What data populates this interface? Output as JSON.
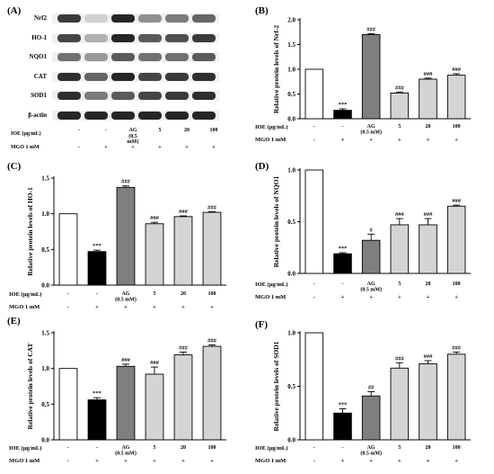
{
  "blot": {
    "panel_label": "(A)",
    "proteins": [
      "Nrf2",
      "HO-1",
      "NQO1",
      "CAT",
      "SOD1",
      "β-actin"
    ],
    "intensity": [
      [
        0.85,
        0.15,
        0.95,
        0.45,
        0.55,
        0.65
      ],
      [
        0.8,
        0.3,
        0.95,
        0.7,
        0.75,
        0.85
      ],
      [
        0.6,
        0.4,
        0.7,
        0.6,
        0.6,
        0.7
      ],
      [
        0.9,
        0.65,
        0.95,
        0.8,
        0.85,
        0.9
      ],
      [
        0.9,
        0.55,
        0.7,
        0.8,
        0.85,
        0.9
      ],
      [
        0.95,
        0.95,
        0.95,
        0.95,
        0.95,
        0.95
      ]
    ],
    "ioe_label": "IOE (μg/mL)",
    "mgo_label": "MGO 1 mM",
    "ioe_values": [
      "-",
      "-",
      "AG\n(0.5 mM)",
      "5",
      "20",
      "100"
    ],
    "mgo_values": [
      "-",
      "+",
      "+",
      "+",
      "+",
      "+"
    ]
  },
  "chart_data": [
    {
      "type": "bar",
      "panel_label": "(B)",
      "ylabel": "Relative protein levels of Nrf-2",
      "ylim": [
        0,
        2.0
      ],
      "yticks": [
        "0.0",
        "0.5",
        "1.0",
        "1.5",
        "2.0"
      ],
      "values": [
        1.0,
        0.17,
        1.7,
        0.52,
        0.8,
        0.88
      ],
      "errors": [
        0,
        0.03,
        0.02,
        0.02,
        0.02,
        0.03
      ],
      "annotations": [
        "",
        "***",
        "###",
        "###",
        "###",
        "###"
      ],
      "ioe_label": "IOE (μg/mL)",
      "mgo_label": "MGO 1 mM",
      "ioe_values": [
        "-",
        "-",
        "AG\n(0.5 mM)",
        "5",
        "20",
        "100"
      ],
      "mgo_values": [
        "-",
        "+",
        "+",
        "+",
        "+",
        "+"
      ]
    },
    {
      "type": "bar",
      "panel_label": "(C)",
      "ylabel": "Relative protein levels of HO-1",
      "ylim": [
        0,
        1.5
      ],
      "yticks": [
        "0.0",
        "0.5",
        "1.0",
        "1.5"
      ],
      "values": [
        1.0,
        0.47,
        1.37,
        0.86,
        0.96,
        1.02
      ],
      "errors": [
        0,
        0.02,
        0.02,
        0.02,
        0.01,
        0.01
      ],
      "annotations": [
        "",
        "***",
        "###",
        "###",
        "###",
        "###"
      ],
      "ioe_label": "IOE (μg/mL)",
      "mgo_label": "MGO 1 mM",
      "ioe_values": [
        "-",
        "-",
        "AG\n(0.5 mM)",
        "5",
        "20",
        "100"
      ],
      "mgo_values": [
        "-",
        "+",
        "+",
        "+",
        "+",
        "+"
      ]
    },
    {
      "type": "bar",
      "panel_label": "(D)",
      "ylabel": "Relative protein levels of NQO1",
      "ylim": [
        0,
        1.0
      ],
      "yticks": [
        "0.0",
        "0.5",
        "1.0"
      ],
      "values": [
        1.0,
        0.19,
        0.32,
        0.47,
        0.47,
        0.65
      ],
      "errors": [
        0,
        0.01,
        0.06,
        0.06,
        0.06,
        0.01
      ],
      "annotations": [
        "",
        "***",
        "#",
        "###",
        "###",
        "###"
      ],
      "ioe_label": "IOE (μg/mL)",
      "mgo_label": "MGO 1 mM",
      "ioe_values": [
        "-",
        "-",
        "AG\n(0.5 mM)",
        "5",
        "20",
        "100"
      ],
      "mgo_values": [
        "-",
        "+",
        "+",
        "+",
        "+",
        "+"
      ]
    },
    {
      "type": "bar",
      "panel_label": "(E)",
      "ylabel": "Relative protein levels of CAT",
      "ylim": [
        0,
        1.5
      ],
      "yticks": [
        "0.0",
        "0.5",
        "1.0",
        "1.5"
      ],
      "values": [
        1.0,
        0.56,
        1.03,
        0.92,
        1.19,
        1.31
      ],
      "errors": [
        0,
        0.03,
        0.03,
        0.1,
        0.04,
        0.02
      ],
      "annotations": [
        "",
        "***",
        "###",
        "###",
        "###",
        "###"
      ],
      "ioe_label": "IOE (μg/mL)",
      "mgo_label": "MGO 1 mM",
      "ioe_values": [
        "-",
        "-",
        "AG\n(0.5 mM)",
        "5",
        "20",
        "100"
      ],
      "mgo_values": [
        "-",
        "+",
        "+",
        "+",
        "+",
        "+"
      ]
    },
    {
      "type": "bar",
      "panel_label": "(F)",
      "ylabel": "Relative protein levels of SOD1",
      "ylim": [
        0,
        1.0
      ],
      "yticks": [
        "0.0",
        "0.5",
        "1.0"
      ],
      "values": [
        1.0,
        0.25,
        0.41,
        0.67,
        0.71,
        0.8
      ],
      "errors": [
        0,
        0.04,
        0.04,
        0.05,
        0.03,
        0.02
      ],
      "annotations": [
        "",
        "***",
        "##",
        "###",
        "###",
        "###"
      ],
      "ioe_label": "IOE (μg/mL)",
      "mgo_label": "MGO 1 mM",
      "ioe_values": [
        "-",
        "-",
        "AG\n(0.5 mM)",
        "5",
        "20",
        "100"
      ],
      "mgo_values": [
        "-",
        "+",
        "+",
        "+",
        "+",
        "+"
      ]
    }
  ],
  "colors": {
    "control": "#ffffff",
    "mgo": "#000000",
    "ag": "#7f7f7f",
    "ioe": "#d4d4d4",
    "band": "#1a1a1a"
  }
}
